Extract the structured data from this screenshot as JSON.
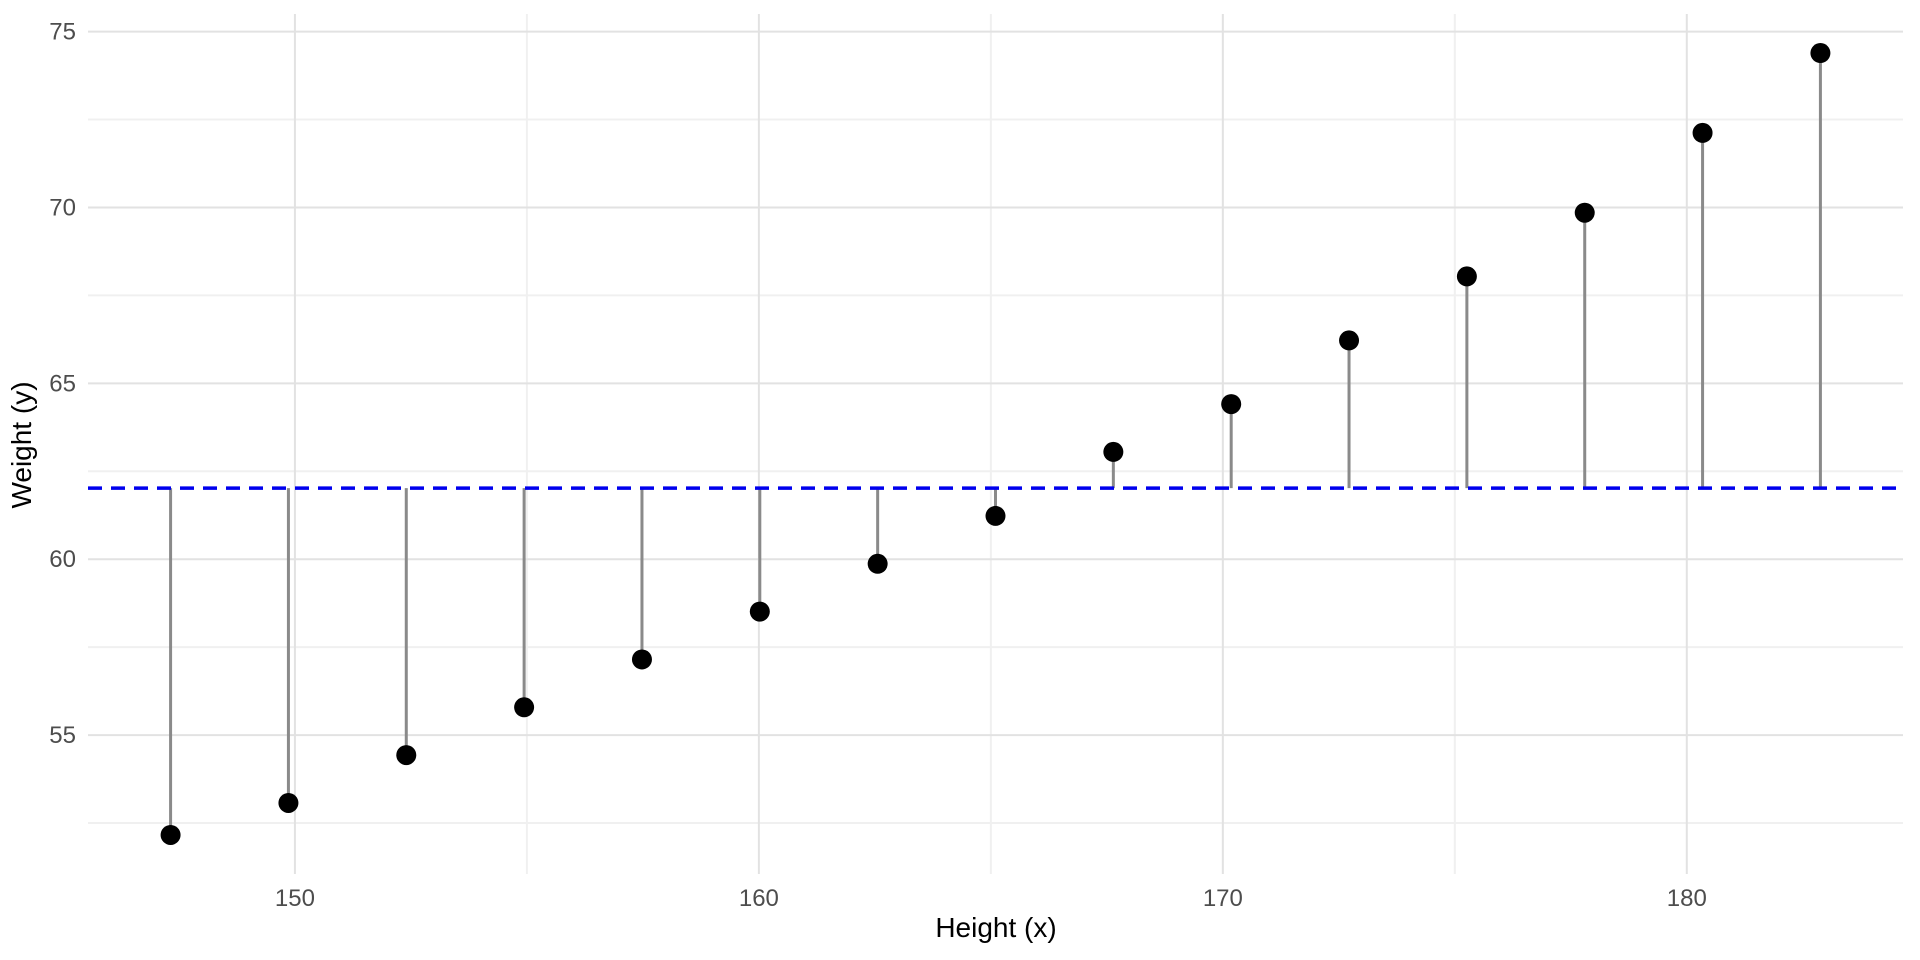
{
  "chart_data": {
    "type": "scatter",
    "title": "",
    "xlabel": "Height (x)",
    "ylabel": "Weight (y)",
    "x": [
      147.32,
      149.86,
      152.4,
      154.94,
      157.48,
      160.02,
      162.56,
      165.1,
      167.64,
      170.18,
      172.72,
      175.26,
      177.8,
      180.34,
      182.88
    ],
    "y": [
      52.16,
      53.07,
      54.43,
      55.79,
      57.15,
      58.51,
      59.87,
      61.23,
      63.05,
      64.41,
      66.22,
      68.04,
      69.85,
      72.12,
      74.39
    ],
    "reference_line": {
      "orientation": "horizontal",
      "value": 62.02,
      "meaning": "mean of y",
      "color": "#0000EE",
      "style": "dashed"
    },
    "segments": {
      "description": "vertical residual segment from reference line to each point",
      "color": "#8a8a8a"
    },
    "point_color": "#000000",
    "point_radius": 10,
    "xticks": {
      "major": [
        150,
        160,
        170,
        180
      ],
      "minor": [
        155,
        165,
        175
      ]
    },
    "yticks": {
      "major": [
        55,
        60,
        65,
        70,
        75
      ],
      "minor": [
        52.5,
        57.5,
        62.5,
        67.5,
        72.5
      ]
    },
    "xlim": [
      145.54,
      184.66
    ],
    "ylim": [
      51.05,
      75.5
    ],
    "grid": {
      "show": true,
      "major_color": "#e2e2e2",
      "minor_color": "#f0f0f0",
      "background": "#ffffff"
    },
    "legend": "none",
    "axis_text_color": "#4d4d4d",
    "axis_title_color": "#000000"
  }
}
